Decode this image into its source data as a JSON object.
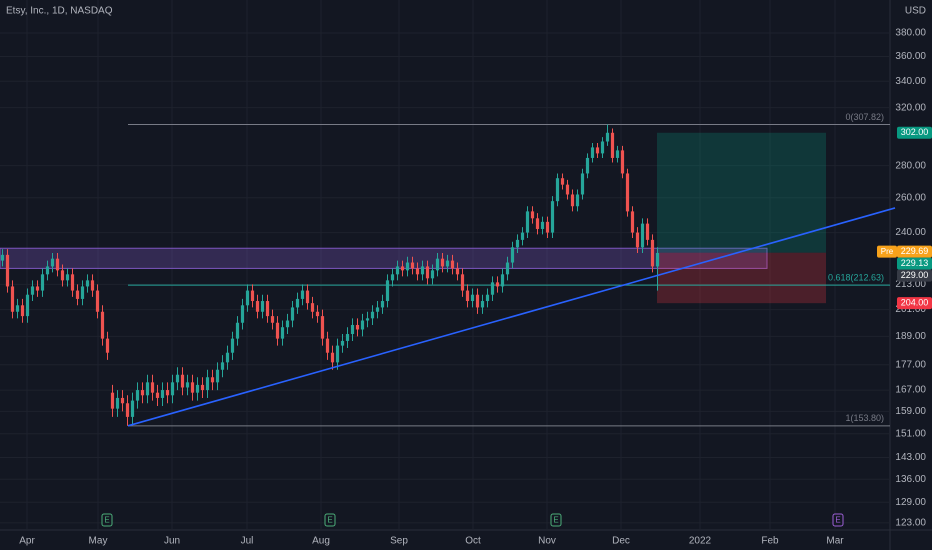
{
  "chart_data": {
    "type": "candlestick",
    "title": "Etsy, Inc., 1D, NASDAQ",
    "currency": "USD",
    "log_scale": true,
    "grid": true,
    "up_color": "#26a69a",
    "down_color": "#ef5350",
    "ylim": [
      121,
      410
    ],
    "yticks": [
      {
        "value": 380,
        "label": "380.00"
      },
      {
        "value": 360,
        "label": "360.00"
      },
      {
        "value": 340,
        "label": "340.00"
      },
      {
        "value": 320,
        "label": "320.00"
      },
      {
        "value": 280,
        "label": "280.00"
      },
      {
        "value": 260,
        "label": "260.00"
      },
      {
        "value": 240,
        "label": "240.00"
      },
      {
        "value": 213,
        "label": "213.00"
      },
      {
        "value": 201,
        "label": "201.00"
      },
      {
        "value": 189,
        "label": "189.00"
      },
      {
        "value": 177,
        "label": "177.00"
      },
      {
        "value": 167,
        "label": "167.00"
      },
      {
        "value": 159,
        "label": "159.00"
      },
      {
        "value": 151,
        "label": "151.00"
      },
      {
        "value": 143,
        "label": "143.00"
      },
      {
        "value": 136,
        "label": "136.00"
      },
      {
        "value": 129,
        "label": "129.00"
      },
      {
        "value": 123,
        "label": "123.00"
      }
    ],
    "xlim": [
      0,
      178
    ],
    "xticks": [
      {
        "value": 5.4,
        "label": "Apr"
      },
      {
        "value": 19.6,
        "label": "May"
      },
      {
        "value": 34.4,
        "label": "Jun"
      },
      {
        "value": 49.4,
        "label": "Jul"
      },
      {
        "value": 64.2,
        "label": "Aug"
      },
      {
        "value": 79.8,
        "label": "Sep"
      },
      {
        "value": 94.6,
        "label": "Oct"
      },
      {
        "value": 109.4,
        "label": "Nov"
      },
      {
        "value": 124.2,
        "label": "Dec"
      },
      {
        "value": 140,
        "label": "2022"
      },
      {
        "value": 154,
        "label": "Feb"
      },
      {
        "value": 167,
        "label": "Mar"
      }
    ],
    "open": [
      225,
      228,
      212,
      200,
      203,
      198,
      208,
      212,
      210,
      218,
      222,
      226,
      220,
      215,
      218,
      210,
      206,
      212,
      215,
      210,
      200,
      188,
      166,
      160,
      164,
      162,
      157,
      163,
      167,
      165,
      170,
      166,
      164,
      167,
      165,
      170,
      173,
      168,
      170,
      166,
      169,
      167,
      172,
      170,
      175,
      178,
      182,
      188,
      195,
      203,
      210,
      205,
      200,
      205,
      198,
      195,
      188,
      193,
      196,
      202,
      206,
      210,
      204,
      200,
      198,
      188,
      182,
      178,
      185,
      187,
      190,
      194,
      192,
      196,
      197,
      200,
      202,
      205,
      215,
      218,
      222,
      220,
      224,
      221,
      218,
      222,
      216,
      220,
      226,
      222,
      225,
      221,
      218,
      210,
      205,
      208,
      202,
      205,
      208,
      214,
      212,
      218,
      224,
      232,
      236,
      240,
      252,
      248,
      242,
      246,
      240,
      258,
      272,
      268,
      262,
      255,
      262,
      275,
      285,
      292,
      288,
      296,
      302,
      285,
      290,
      275,
      252,
      240,
      232,
      245,
      236,
      222
    ],
    "high": [
      231,
      231,
      215,
      206,
      206,
      211,
      215,
      215,
      221,
      225,
      229,
      229,
      223,
      221,
      221,
      213,
      215,
      218,
      218,
      213,
      203,
      191,
      169,
      167,
      167,
      165,
      166,
      170,
      170,
      173,
      173,
      169,
      170,
      170,
      173,
      176,
      176,
      173,
      173,
      172,
      172,
      175,
      175,
      178,
      181,
      185,
      191,
      198,
      206,
      213,
      213,
      208,
      208,
      208,
      201,
      198,
      196,
      199,
      205,
      209,
      213,
      213,
      207,
      203,
      201,
      191,
      185,
      188,
      190,
      193,
      197,
      197,
      199,
      200,
      203,
      205,
      208,
      218,
      221,
      225,
      225,
      227,
      227,
      224,
      225,
      225,
      223,
      229,
      229,
      228,
      228,
      224,
      221,
      213,
      211,
      211,
      208,
      211,
      217,
      217,
      221,
      227,
      235,
      239,
      243,
      255,
      255,
      251,
      249,
      249,
      261,
      275,
      275,
      271,
      265,
      265,
      278,
      288,
      295,
      295,
      299,
      307.82,
      305,
      293,
      293,
      278,
      255,
      243,
      248,
      248,
      239,
      232
    ],
    "low": [
      222,
      209,
      197,
      197,
      195,
      195,
      205,
      207,
      207,
      215,
      219,
      217,
      212,
      212,
      207,
      203,
      203,
      209,
      207,
      197,
      185,
      179,
      157,
      157,
      159,
      153.8,
      154,
      160,
      162,
      162,
      163,
      161,
      161,
      162,
      162,
      167,
      165,
      165,
      163,
      163,
      164,
      164,
      167,
      167,
      172,
      175,
      179,
      185,
      192,
      200,
      202,
      197,
      197,
      195,
      192,
      185,
      185,
      190,
      193,
      199,
      203,
      201,
      197,
      195,
      185,
      179,
      175,
      175,
      182,
      184,
      187,
      189,
      189,
      193,
      194,
      197,
      199,
      202,
      212,
      215,
      217,
      217,
      218,
      215,
      215,
      213,
      213,
      217,
      219,
      219,
      218,
      215,
      207,
      202,
      202,
      199,
      199,
      202,
      205,
      209,
      209,
      215,
      221,
      229,
      233,
      237,
      245,
      239,
      239,
      237,
      237,
      255,
      265,
      259,
      252,
      252,
      259,
      272,
      282,
      285,
      285,
      293,
      282,
      282,
      272,
      249,
      237,
      229,
      229,
      233,
      219,
      210
    ],
    "close": [
      228,
      212,
      200,
      203,
      198,
      208,
      212,
      210,
      218,
      222,
      226,
      220,
      215,
      218,
      210,
      206,
      212,
      215,
      210,
      200,
      188,
      182,
      160,
      164,
      162,
      157,
      163,
      167,
      165,
      170,
      166,
      164,
      167,
      165,
      170,
      173,
      168,
      170,
      166,
      169,
      167,
      172,
      170,
      175,
      178,
      182,
      188,
      195,
      203,
      210,
      205,
      200,
      205,
      198,
      195,
      188,
      193,
      196,
      202,
      206,
      210,
      204,
      200,
      198,
      188,
      182,
      178,
      185,
      187,
      190,
      194,
      192,
      196,
      197,
      200,
      202,
      205,
      215,
      218,
      222,
      220,
      224,
      221,
      218,
      222,
      216,
      220,
      226,
      222,
      225,
      221,
      218,
      210,
      205,
      208,
      202,
      205,
      208,
      214,
      212,
      218,
      224,
      232,
      236,
      240,
      252,
      248,
      242,
      246,
      240,
      258,
      272,
      268,
      262,
      255,
      262,
      275,
      285,
      292,
      288,
      296,
      302,
      285,
      290,
      275,
      252,
      240,
      232,
      245,
      236,
      222,
      229
    ],
    "zone": {
      "y": [
        221,
        231.5
      ],
      "x": [
        0,
        153.4
      ],
      "color": "#7e57c2"
    },
    "fib_x": [
      25.6,
      178
    ],
    "fib": [
      {
        "value": 307.82,
        "label": "0(307.82)",
        "color": "#787b86"
      },
      {
        "value": 212.63,
        "label": "0.618(212.63)",
        "color": "#26a69a"
      },
      {
        "value": 153.8,
        "label": "1(153.80)",
        "color": "#787b86"
      }
    ],
    "trendline": {
      "x": [
        25.6,
        179
      ],
      "y": [
        153.8,
        254
      ],
      "color": "#2962ff"
    },
    "position": {
      "x": [
        131.4,
        165.2
      ],
      "entry": 229.13,
      "target": 302,
      "stop": 204
    },
    "price_labels": [
      {
        "value": 302,
        "label": "302.00",
        "color": "#089981"
      },
      {
        "value": 229.69,
        "label": "229.69",
        "tag": "Pre",
        "color": "#f7a21b"
      },
      {
        "value": 229.13,
        "label": "229.13",
        "color": "#089981"
      },
      {
        "value": 229,
        "label": "229.00",
        "color": "#363a45"
      },
      {
        "value": 204,
        "label": "204.00",
        "color": "#f23645"
      }
    ],
    "events": [
      {
        "label": "E",
        "x": 21.4,
        "color": "#4caf7a"
      },
      {
        "label": "E",
        "x": 66,
        "color": "#4caf7a"
      },
      {
        "label": "E",
        "x": 111.2,
        "color": "#4caf7a"
      },
      {
        "label": "E",
        "x": 167.6,
        "color": "#9c5fd6"
      }
    ]
  }
}
